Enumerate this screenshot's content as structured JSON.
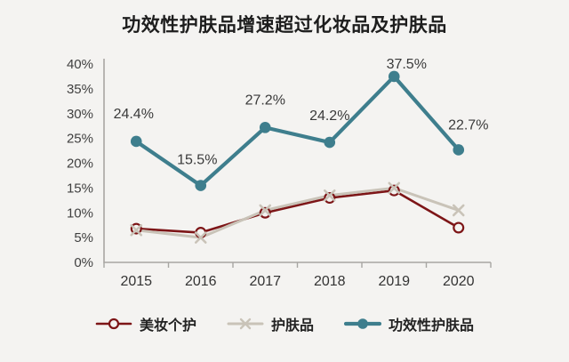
{
  "title": "功效性护肤品增速超过化妆品及护肤品",
  "colors": {
    "background": "#f4f3f1",
    "axis": "#a8a6a3",
    "axis_label_text": "#3f3f3f",
    "data_label_text": "#3a3a3a",
    "series_beauty_personal_care": "#7d1517",
    "series_skincare": "#c9c3b8",
    "series_functional_skincare": "#3e7e8d"
  },
  "chart_data": {
    "type": "line",
    "title": "功效性护肤品增速超过化妆品及护肤品",
    "categories": [
      "2015",
      "2016",
      "2017",
      "2018",
      "2019",
      "2020"
    ],
    "xlabel": "",
    "ylabel": "",
    "ylim": [
      0,
      40
    ],
    "ytick_step": 5,
    "ytick_suffix": "%",
    "grid": false,
    "legend_position": "bottom",
    "series": [
      {
        "name": "美妆个护",
        "color": "#7d1517",
        "marker": "open-circle",
        "values": [
          6.8,
          6,
          10,
          13,
          14.5,
          7
        ]
      },
      {
        "name": "护肤品",
        "color": "#c9c3b8",
        "marker": "x",
        "values": [
          6.5,
          5,
          10.5,
          13.5,
          15,
          10.5
        ]
      },
      {
        "name": "功效性护肤品",
        "color": "#3e7e8d",
        "marker": "filled-circle",
        "values": [
          24.4,
          15.5,
          27.2,
          24.2,
          37.5,
          22.7
        ],
        "data_labels": [
          "24.4%",
          "15.5%",
          "27.2%",
          "24.2%",
          "37.5%",
          "22.7%"
        ]
      }
    ]
  }
}
